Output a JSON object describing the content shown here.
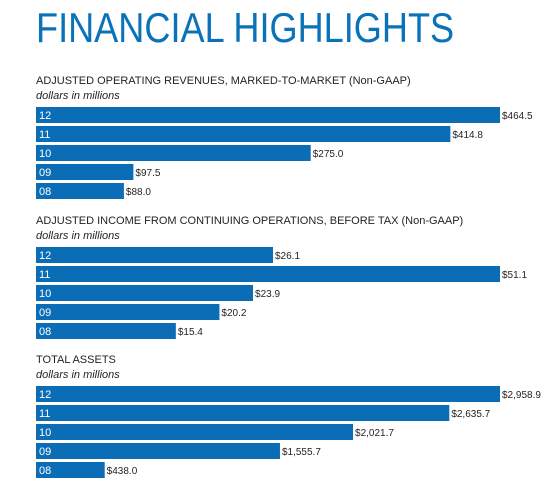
{
  "page": {
    "title": "FINANCIAL HIGHLIGHTS"
  },
  "colors": {
    "title": "#0a72b8",
    "bar": "#0a6db5",
    "text": "#231f20"
  },
  "chart_data": [
    {
      "type": "bar",
      "orientation": "horizontal",
      "title": "ADJUSTED OPERATING REVENUES, MARKED-TO-MARKET (Non-GAAP)",
      "subtitle": "dollars in millions",
      "categories": [
        "12",
        "11",
        "10",
        "09",
        "08"
      ],
      "values": [
        464.5,
        414.8,
        275.0,
        97.5,
        88.0
      ],
      "value_labels": [
        "$464.5",
        "$414.8",
        "$275.0",
        "$97.5",
        "$88.0"
      ],
      "xlim": [
        0,
        464.5
      ],
      "grid": false,
      "legend": "none"
    },
    {
      "type": "bar",
      "orientation": "horizontal",
      "title": "ADJUSTED INCOME FROM CONTINUING OPERATIONS, BEFORE TAX (Non-GAAP)",
      "subtitle": "dollars in millions",
      "categories": [
        "12",
        "11",
        "10",
        "09",
        "08"
      ],
      "values": [
        26.1,
        51.1,
        23.9,
        20.2,
        15.4
      ],
      "value_labels": [
        "$26.1",
        "$51.1",
        "$23.9",
        "$20.2",
        "$15.4"
      ],
      "xlim": [
        0,
        51.1
      ],
      "grid": false,
      "legend": "none"
    },
    {
      "type": "bar",
      "orientation": "horizontal",
      "title": "TOTAL ASSETS",
      "subtitle": "dollars in millions",
      "categories": [
        "12",
        "11",
        "10",
        "09",
        "08"
      ],
      "values": [
        2958.9,
        2635.7,
        2021.7,
        1555.7,
        438.0
      ],
      "value_labels": [
        "$2,958.9",
        "$2,635.7",
        "$2,021.7",
        "$1,555.7",
        "$438.0"
      ],
      "xlim": [
        0,
        2958.9
      ],
      "grid": false,
      "legend": "none"
    }
  ]
}
